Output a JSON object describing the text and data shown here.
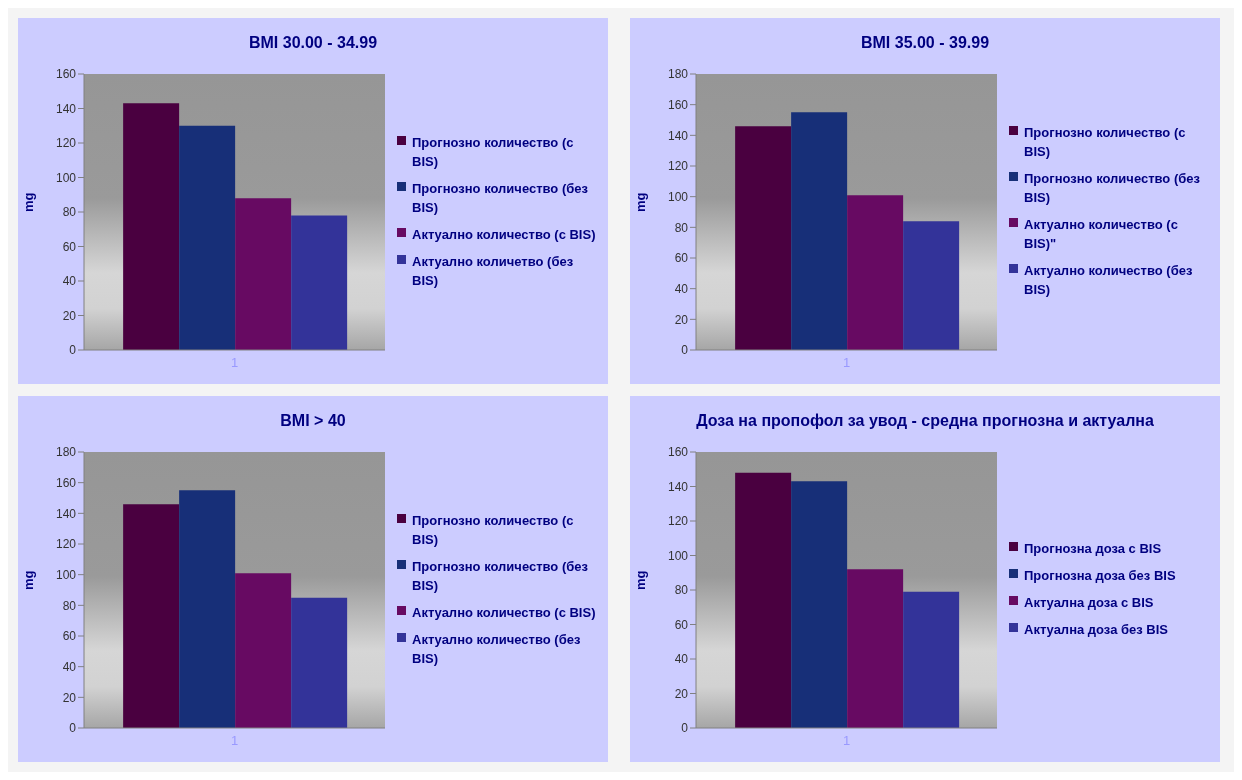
{
  "chart_data": [
    {
      "type": "bar",
      "title": "BMI 30.00 - 34.99",
      "ylabel": "mg",
      "categories": [
        "1"
      ],
      "ylim": [
        0,
        160
      ],
      "yticks": [
        0,
        20,
        40,
        60,
        80,
        100,
        120,
        140,
        160
      ],
      "legend": "right",
      "series": [
        {
          "name": " Прогнозно количество (с BIS)",
          "color": "#4a0040",
          "values": [
            143
          ]
        },
        {
          "name": "Прогнозно количество (без BIS)",
          "color": "#172f78",
          "values": [
            130
          ]
        },
        {
          "name": "Актуално количество (с BIS)",
          "color": "#670a62",
          "values": [
            88
          ]
        },
        {
          "name": "Актуално количетво (без BIS)",
          "color": "#333399",
          "values": [
            78
          ]
        }
      ]
    },
    {
      "type": "bar",
      "title": "BMI 35.00 - 39.99",
      "ylabel": "mg",
      "categories": [
        "1"
      ],
      "ylim": [
        0,
        180
      ],
      "yticks": [
        0,
        20,
        40,
        60,
        80,
        100,
        120,
        140,
        160,
        180
      ],
      "legend": "right",
      "series": [
        {
          "name": "Прогнозно количество (с BIS)",
          "color": "#4a0040",
          "values": [
            146
          ]
        },
        {
          "name": "Прогнозно количество (без BIS)",
          "color": "#172f78",
          "values": [
            155
          ]
        },
        {
          "name": "Актуално количество (с BIS)\"",
          "color": "#670a62",
          "values": [
            101
          ]
        },
        {
          "name": "Актуално количество (без BIS)",
          "color": "#333399",
          "values": [
            84
          ]
        }
      ]
    },
    {
      "type": "bar",
      "title": "BMI > 40",
      "ylabel": "mg",
      "categories": [
        "1"
      ],
      "ylim": [
        0,
        180
      ],
      "yticks": [
        0,
        20,
        40,
        60,
        80,
        100,
        120,
        140,
        160,
        180
      ],
      "legend": "right",
      "series": [
        {
          "name": "Прогнозно количество (с BIS)",
          "color": "#4a0040",
          "values": [
            146
          ]
        },
        {
          "name": "Прогнозно количество (без BIS)",
          "color": "#172f78",
          "values": [
            155
          ]
        },
        {
          "name": "Актуално количество (с BIS)",
          "color": "#670a62",
          "values": [
            101
          ]
        },
        {
          "name": "Актуално количество (без BIS)",
          "color": "#333399",
          "values": [
            85
          ]
        }
      ]
    },
    {
      "type": "bar",
      "title": "Доза на пропофол за увод - средна прогнозна и актуална",
      "ylabel": "mg",
      "categories": [
        "1"
      ],
      "ylim": [
        0,
        160
      ],
      "yticks": [
        0,
        20,
        40,
        60,
        80,
        100,
        120,
        140,
        160
      ],
      "legend": "right",
      "series": [
        {
          "name": "Прогнозна доза с BIS",
          "color": "#4a0040",
          "values": [
            148
          ]
        },
        {
          "name": "Прогнозна доза без BIS",
          "color": "#172f78",
          "values": [
            143
          ]
        },
        {
          "name": "Актуална доза с BIS",
          "color": "#670a62",
          "values": [
            92
          ]
        },
        {
          "name": "Актуална доза без BIS",
          "color": "#333399",
          "values": [
            79
          ]
        }
      ]
    }
  ]
}
